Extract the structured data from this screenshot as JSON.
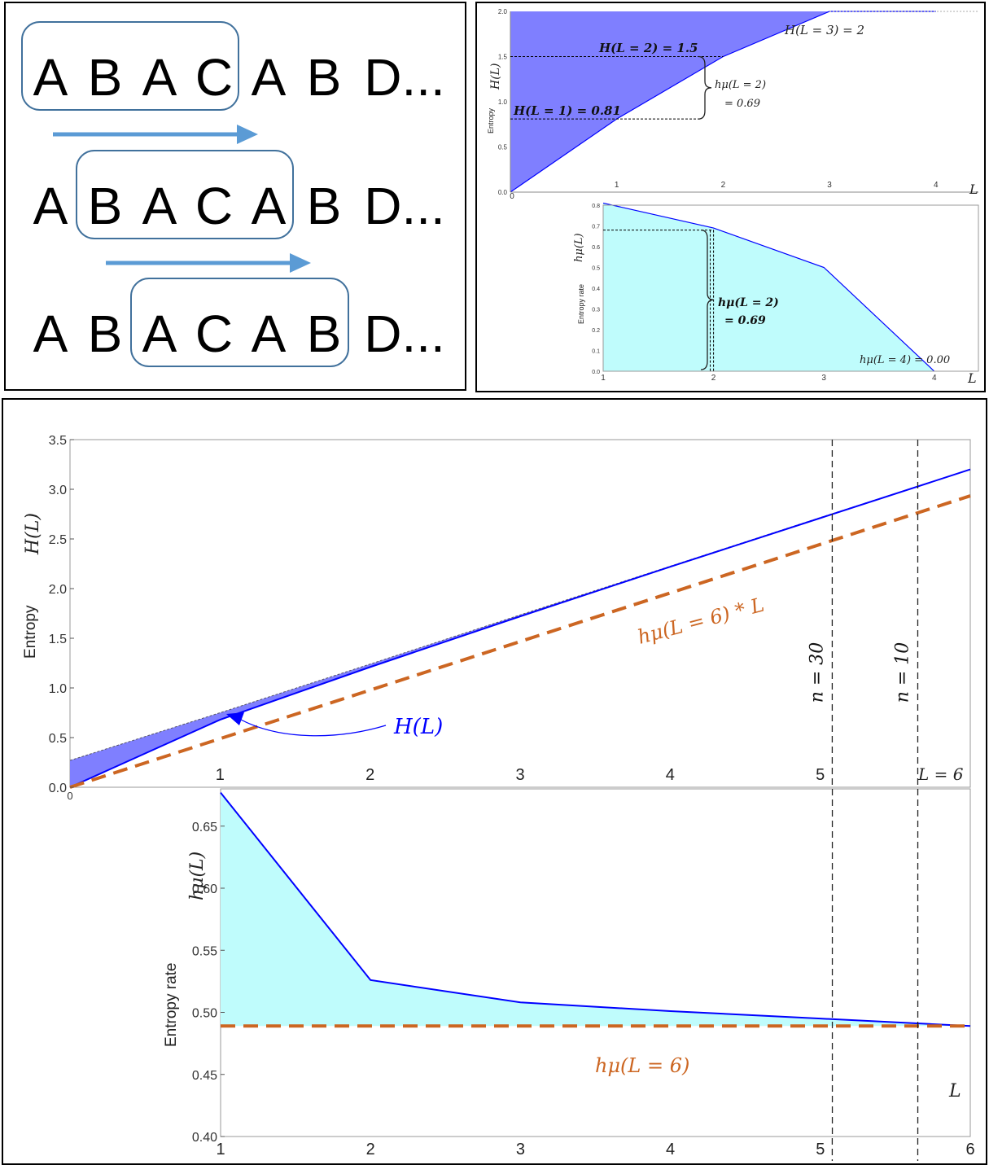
{
  "sequence_panel": {
    "rows": [
      [
        "A",
        "B",
        "A",
        "C",
        "A",
        "B",
        "D..."
      ],
      [
        "A",
        "B",
        "A",
        "C",
        "A",
        "B",
        "D..."
      ],
      [
        "A",
        "B",
        "A",
        "C",
        "A",
        "B",
        "D..."
      ]
    ],
    "window_start": [
      0,
      1,
      2
    ],
    "window_size": 4,
    "colors": {
      "box": "#41719c",
      "arrow": "#5b9bd5"
    }
  },
  "chart_data": [
    {
      "type": "area",
      "id": "small-entropy",
      "x": [
        0,
        1,
        2,
        3,
        4
      ],
      "H_L": [
        0,
        0.81,
        1.5,
        2,
        2
      ],
      "xlim": [
        0,
        4.4
      ],
      "ylim": [
        0,
        2.0
      ],
      "yticks": [
        "0.0",
        "0.5",
        "1.0",
        "1.5",
        "2.0"
      ],
      "xticks": [
        "0",
        "1",
        "2",
        "3",
        "4"
      ],
      "ylabel_top": "H(L)",
      "ylabel_bottom": "Entropy",
      "xlabel": "L",
      "annotations": {
        "h2": "H(L = 2) = 1.5",
        "h1": "H(L = 1) = 0.81",
        "h3": "H(L = 3) = 2",
        "brace_1": "hμ(L = 2)",
        "brace_2": "= 0.69"
      },
      "colors": {
        "fill": "#7f7fff",
        "line": "#0000ff"
      }
    },
    {
      "type": "area",
      "id": "small-rate",
      "x": [
        1,
        2,
        3,
        4
      ],
      "h_mu": [
        0.81,
        0.69,
        0.5,
        0.0
      ],
      "xlim": [
        1,
        4.4
      ],
      "ylim": [
        0,
        0.8
      ],
      "yticks": [
        "0.0",
        "0.1",
        "0.2",
        "0.3",
        "0.4",
        "0.5",
        "0.6",
        "0.7",
        "0.8"
      ],
      "xticks": [
        "1",
        "2",
        "3",
        "4"
      ],
      "ylabel_top": "hμ(L)",
      "ylabel_bottom": "Entropy rate",
      "xlabel": "L",
      "annotations": {
        "brace_1": "hμ(L = 2)",
        "brace_2": "= 0.69",
        "h4": "hμ(L = 4) = 0.00"
      },
      "colors": {
        "fill": "#bffcfc",
        "line": "#0000ff"
      }
    },
    {
      "type": "area",
      "id": "big-entropy",
      "x": [
        0,
        1,
        2,
        3,
        4,
        5,
        6
      ],
      "H_L": [
        0,
        0.68,
        1.21,
        1.72,
        2.22,
        2.71,
        3.2
      ],
      "upper": [
        0.27,
        0.75,
        1.24,
        1.735,
        2.225,
        2.715,
        3.2
      ],
      "asymptote_slope": 0.489,
      "xlim": [
        0,
        6
      ],
      "ylim": [
        0,
        3.5
      ],
      "yticks": [
        "0.0",
        "0.5",
        "1.0",
        "1.5",
        "2.0",
        "2.5",
        "3.0",
        "3.5"
      ],
      "xticks": [
        "0",
        "1",
        "2",
        "3",
        "4",
        "5"
      ],
      "last_xtick": "L = 6",
      "ylabel_top": "H(L)",
      "ylabel_bottom": "Entropy",
      "series_label": "H(L)",
      "asymptote_label": "hμ(L = 6) * L",
      "vlines": [
        {
          "x": 5.08,
          "label": "n = 30"
        },
        {
          "x": 5.65,
          "label": "n = 10"
        }
      ],
      "colors": {
        "fill": "#7f7fff",
        "line": "#0000ff",
        "asymptote": "#cc6622"
      }
    },
    {
      "type": "area",
      "id": "big-rate",
      "x": [
        1,
        2,
        3,
        4,
        5,
        6
      ],
      "h_mu": [
        0.677,
        0.526,
        0.508,
        0.501,
        0.495,
        0.489
      ],
      "asymptote": 0.489,
      "xlim": [
        1,
        6
      ],
      "ylim": [
        0.4,
        0.68
      ],
      "yticks": [
        "0.40",
        "0.45",
        "0.50",
        "0.55",
        "0.60",
        "0.65"
      ],
      "xticks": [
        "1",
        "2",
        "3",
        "4",
        "5",
        "6"
      ],
      "ylabel_top": "hμ(L)",
      "ylabel_bottom": "Entropy rate",
      "xlabel": "L",
      "asymptote_label": "hμ(L = 6)",
      "vlines": [
        {
          "x": 5.08
        },
        {
          "x": 5.65
        }
      ],
      "colors": {
        "fill": "#bffcfc",
        "line": "#0000ff",
        "asymptote": "#cc6622"
      }
    }
  ]
}
